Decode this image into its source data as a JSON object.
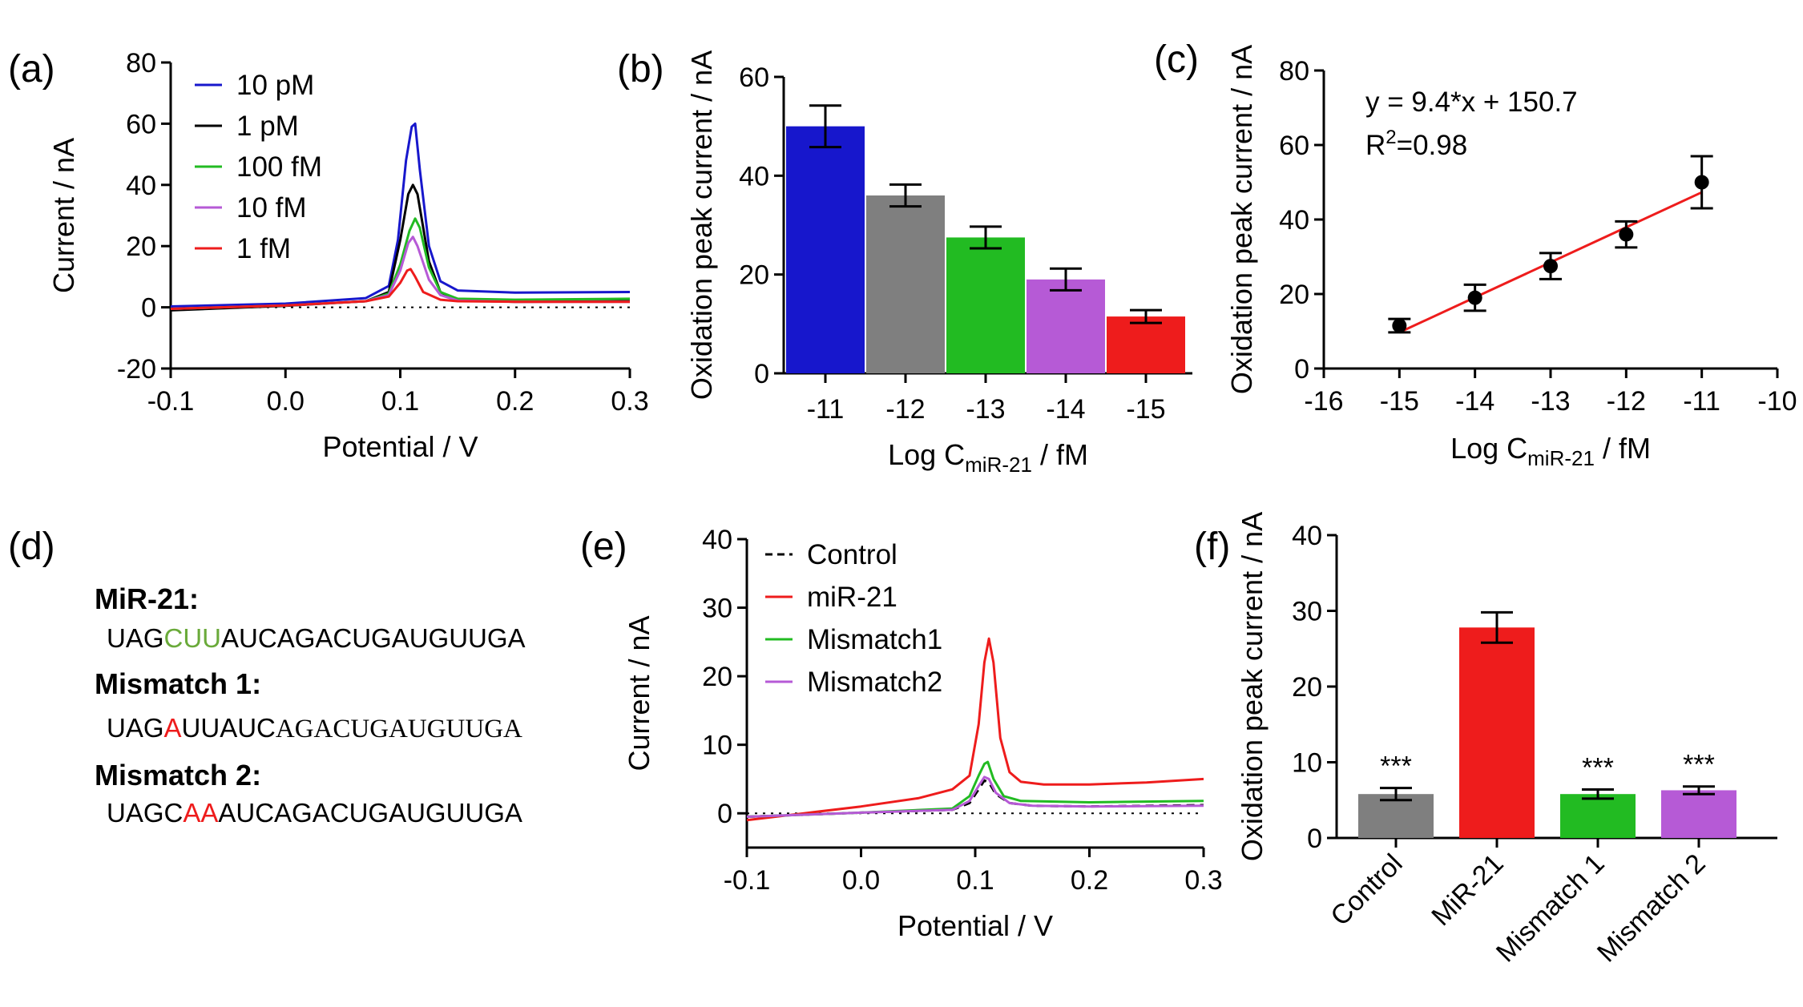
{
  "panels": {
    "a": "(a)",
    "b": "(b)",
    "c": "(c)",
    "d": "(d)",
    "e": "(e)",
    "f": "(f)"
  },
  "colors": {
    "blue": "#1717cc",
    "black": "#000000",
    "green": "#22bb22",
    "violet": "#b65ad6",
    "red": "#ee1c1c",
    "gray": "#7f7f7f"
  },
  "sequences": {
    "mir21_title": "MiR-21:",
    "mir21_a": "UAG",
    "mir21_b": "CUU",
    "mir21_c": "AUCAGACUGAUGUUGA",
    "mm1_title": "Mismatch 1:",
    "mm1_a": "UAG",
    "mm1_b": "A",
    "mm1_c": "UUAUC",
    "mm1_d": "AGACUGAUGUUGA",
    "mm2_title": "Mismatch 2:",
    "mm2_a": "UAGC",
    "mm2_b": "AA",
    "mm2_c": "AUCAGACUGAUGUUGA"
  },
  "chart_data": [
    {
      "panel": "a",
      "type": "line",
      "xlabel": "Potential / V",
      "ylabel": "Current / nA",
      "xlim": [
        -0.1,
        0.3
      ],
      "ylim": [
        -20,
        80
      ],
      "xticks": [
        "-0.1",
        "0.0",
        "0.1",
        "0.2",
        "0.3"
      ],
      "yticks": [
        "-20",
        "0",
        "20",
        "40",
        "60",
        "80"
      ],
      "legend_position": "top-center",
      "series": [
        {
          "name": "10 pM",
          "color": "#1717cc",
          "x": [
            -0.1,
            0.0,
            0.07,
            0.09,
            0.098,
            0.105,
            0.11,
            0.113,
            0.117,
            0.125,
            0.135,
            0.15,
            0.2,
            0.3
          ],
          "y": [
            0.3,
            1.2,
            3.0,
            7,
            22,
            48,
            59,
            60,
            45,
            20,
            8.5,
            5.5,
            4.8,
            5.0
          ]
        },
        {
          "name": "1 pM",
          "color": "#000000",
          "x": [
            -0.1,
            0.0,
            0.07,
            0.09,
            0.1,
            0.107,
            0.111,
            0.115,
            0.125,
            0.135,
            0.15,
            0.2,
            0.3
          ],
          "y": [
            -1.0,
            0.5,
            2.0,
            5,
            22,
            37,
            40,
            37,
            15,
            5,
            2.2,
            1.8,
            2.0
          ]
        },
        {
          "name": "100 fM",
          "color": "#22bb22",
          "x": [
            -0.1,
            0.0,
            0.07,
            0.09,
            0.1,
            0.108,
            0.113,
            0.117,
            0.125,
            0.135,
            0.15,
            0.2,
            0.3
          ],
          "y": [
            -0.5,
            0.6,
            2.0,
            4.5,
            14,
            25,
            29,
            26,
            13,
            5,
            2.8,
            2.5,
            2.8
          ]
        },
        {
          "name": "10 fM",
          "color": "#b65ad6",
          "x": [
            -0.1,
            0.0,
            0.07,
            0.09,
            0.1,
            0.107,
            0.111,
            0.115,
            0.125,
            0.135,
            0.15,
            0.2,
            0.3
          ],
          "y": [
            -0.5,
            0.6,
            2.0,
            4,
            12,
            21,
            23,
            20,
            9,
            4,
            2.2,
            1.8,
            1.8
          ]
        },
        {
          "name": "1 fM",
          "color": "#ee1c1c",
          "x": [
            -0.1,
            0.0,
            0.07,
            0.09,
            0.1,
            0.106,
            0.109,
            0.113,
            0.12,
            0.135,
            0.15,
            0.2,
            0.3
          ],
          "y": [
            -0.5,
            0.6,
            2.0,
            3.5,
            8,
            12,
            12.5,
            10,
            5,
            2.5,
            2.0,
            1.8,
            1.8
          ]
        }
      ]
    },
    {
      "panel": "b",
      "type": "bar",
      "xlabel_main": "Log C",
      "xlabel_sub": "miR-21",
      "xlabel_unit": " / fM",
      "ylabel": "Oxidation peak current / nA",
      "ylim": [
        0,
        60
      ],
      "yticks": [
        "0",
        "20",
        "40",
        "60"
      ],
      "categories": [
        "-11",
        "-12",
        "-13",
        "-14",
        "-15"
      ],
      "values": [
        50,
        36,
        27.5,
        19,
        11.5
      ],
      "errors": [
        4.2,
        2.2,
        2.2,
        2.2,
        1.3
      ],
      "bar_colors": [
        "#1717cc",
        "#7f7f7f",
        "#22bb22",
        "#b65ad6",
        "#ee1c1c"
      ]
    },
    {
      "panel": "c",
      "type": "scatter",
      "xlabel_main": "Log C",
      "xlabel_sub": "miR-21",
      "xlabel_unit": " / fM",
      "ylabel": "Oxidation peak current / nA",
      "xlim": [
        -16,
        -10
      ],
      "ylim": [
        0,
        80
      ],
      "xticks": [
        "-16",
        "-15",
        "-14",
        "-13",
        "-12",
        "-11",
        "-10"
      ],
      "yticks": [
        "0",
        "20",
        "40",
        "60",
        "80"
      ],
      "x": [
        -15,
        -14,
        -13,
        -12,
        -11
      ],
      "y": [
        11.5,
        19,
        27.5,
        36,
        50
      ],
      "errors": [
        1.8,
        3.5,
        3.5,
        3.5,
        7
      ],
      "fit_line": {
        "x": [
          -15,
          -11
        ],
        "color": "#ee1c1c",
        "slope": 9.4,
        "intercept": 150.7
      },
      "equation": "y = 9.4*x + 150.7",
      "r2_prefix": "R",
      "r2_sup": "2",
      "r2_value": "=0.98"
    },
    {
      "panel": "e",
      "type": "line",
      "xlabel": "Potential / V",
      "ylabel": "Current / nA",
      "xlim": [
        -0.1,
        0.3
      ],
      "ylim": [
        -5,
        40
      ],
      "xticks": [
        "-0.1",
        "0.0",
        "0.1",
        "0.2",
        "0.3"
      ],
      "yticks": [
        "0",
        "10",
        "20",
        "30",
        "40"
      ],
      "legend_position": "top-left",
      "series": [
        {
          "name": "Control",
          "color": "#000000",
          "dashed": true,
          "x": [
            -0.1,
            0.0,
            0.08,
            0.095,
            0.103,
            0.108,
            0.112,
            0.118,
            0.13,
            0.15,
            0.2,
            0.3
          ],
          "y": [
            -0.5,
            0.1,
            0.5,
            1.5,
            3.5,
            4.8,
            4.5,
            2.8,
            1.5,
            1.1,
            1.0,
            1.2
          ]
        },
        {
          "name": "miR-21",
          "color": "#ee1c1c",
          "x": [
            -0.1,
            -0.05,
            0.0,
            0.05,
            0.08,
            0.095,
            0.103,
            0.108,
            0.112,
            0.116,
            0.122,
            0.13,
            0.14,
            0.16,
            0.2,
            0.25,
            0.3
          ],
          "y": [
            -1.0,
            0.0,
            1.0,
            2.2,
            3.5,
            5.5,
            13,
            22,
            25.5,
            22,
            11,
            6,
            4.6,
            4.2,
            4.2,
            4.5,
            5.0
          ]
        },
        {
          "name": "Mismatch1",
          "color": "#22bb22",
          "x": [
            -0.1,
            0.0,
            0.08,
            0.095,
            0.103,
            0.108,
            0.111,
            0.116,
            0.125,
            0.14,
            0.2,
            0.3
          ],
          "y": [
            -0.5,
            0.1,
            0.7,
            2.5,
            5.5,
            7.2,
            7.5,
            5,
            2.5,
            1.8,
            1.6,
            1.8
          ]
        },
        {
          "name": "Mismatch2",
          "color": "#b65ad6",
          "x": [
            -0.1,
            0.0,
            0.08,
            0.095,
            0.103,
            0.108,
            0.112,
            0.118,
            0.13,
            0.15,
            0.2,
            0.3
          ],
          "y": [
            -0.5,
            0.1,
            0.5,
            1.8,
            4,
            5.3,
            5,
            3,
            1.5,
            1.1,
            1.0,
            1.1
          ]
        }
      ]
    },
    {
      "panel": "f",
      "type": "bar",
      "ylabel": "Oxidation peak current / nA",
      "ylim": [
        0,
        40
      ],
      "yticks": [
        "0",
        "10",
        "20",
        "30",
        "40"
      ],
      "categories": [
        "Control",
        "MiR-21",
        "Mismatch 1",
        "Mismatch 2"
      ],
      "values": [
        5.8,
        27.8,
        5.8,
        6.3
      ],
      "errors": [
        0.8,
        2.0,
        0.6,
        0.5
      ],
      "bar_colors": [
        "#7f7f7f",
        "#ee1c1c",
        "#22bb22",
        "#b65ad6"
      ],
      "annotations": [
        "***",
        "",
        "***",
        "***"
      ]
    }
  ]
}
